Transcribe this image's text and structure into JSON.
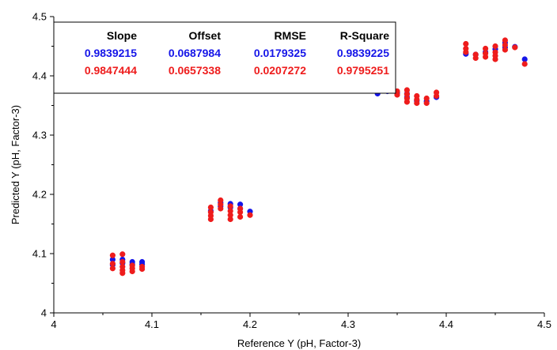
{
  "chart_data": {
    "type": "scatter",
    "title": "",
    "xlabel": "Reference Y (pH, Factor-3)",
    "ylabel": "Predicted Y (pH, Factor-3)",
    "xlim": [
      4,
      4.5
    ],
    "ylim": [
      4,
      4.5
    ],
    "x_ticks": [
      "4",
      "4.1",
      "4.2",
      "4.3",
      "4.4",
      "4.5"
    ],
    "y_ticks": [
      "4",
      "4.1",
      "4.2",
      "4.3",
      "4.4",
      "4.5"
    ],
    "grid": false,
    "legend": "none",
    "stats_table": {
      "headers": [
        "Slope",
        "Offset",
        "RMSE",
        "R-Square"
      ],
      "rows": [
        {
          "color": "#1515e8",
          "values": [
            "0.9839215",
            "0.0687984",
            "0.0179325",
            "0.9839225"
          ]
        },
        {
          "color": "#ee1c1c",
          "values": [
            "0.9847444",
            "0.0657338",
            "0.0207272",
            "0.9795251"
          ]
        }
      ]
    },
    "series": [
      {
        "color": "#1515e8",
        "points": [
          [
            4.06,
            4.081
          ],
          [
            4.06,
            4.09
          ],
          [
            4.07,
            4.084
          ],
          [
            4.07,
            4.09
          ],
          [
            4.08,
            4.082
          ],
          [
            4.08,
            4.086
          ],
          [
            4.09,
            4.086
          ],
          [
            4.09,
            4.082
          ],
          [
            4.16,
            4.172
          ],
          [
            4.17,
            4.18
          ],
          [
            4.17,
            4.186
          ],
          [
            4.18,
            4.178
          ],
          [
            4.18,
            4.184
          ],
          [
            4.19,
            4.183
          ],
          [
            4.19,
            4.176
          ],
          [
            4.2,
            4.171
          ],
          [
            4.33,
            4.37
          ],
          [
            4.34,
            4.374
          ],
          [
            4.35,
            4.371
          ],
          [
            4.36,
            4.364
          ],
          [
            4.36,
            4.37
          ],
          [
            4.37,
            4.358
          ],
          [
            4.38,
            4.357
          ],
          [
            4.39,
            4.364
          ],
          [
            4.42,
            4.437
          ],
          [
            4.43,
            4.436
          ],
          [
            4.44,
            4.44
          ],
          [
            4.45,
            4.445
          ],
          [
            4.46,
            4.456
          ],
          [
            4.46,
            4.448
          ],
          [
            4.47,
            4.449
          ],
          [
            4.48,
            4.428
          ]
        ]
      },
      {
        "color": "#ee1c1c",
        "points": [
          [
            4.06,
            4.075
          ],
          [
            4.06,
            4.083
          ],
          [
            4.06,
            4.097
          ],
          [
            4.07,
            4.067
          ],
          [
            4.07,
            4.072
          ],
          [
            4.07,
            4.078
          ],
          [
            4.07,
            4.086
          ],
          [
            4.07,
            4.099
          ],
          [
            4.08,
            4.07
          ],
          [
            4.08,
            4.075
          ],
          [
            4.08,
            4.08
          ],
          [
            4.09,
            4.074
          ],
          [
            4.09,
            4.078
          ],
          [
            4.16,
            4.158
          ],
          [
            4.16,
            4.164
          ],
          [
            4.16,
            4.17
          ],
          [
            4.16,
            4.178
          ],
          [
            4.17,
            4.176
          ],
          [
            4.17,
            4.183
          ],
          [
            4.17,
            4.19
          ],
          [
            4.18,
            4.158
          ],
          [
            4.18,
            4.165
          ],
          [
            4.18,
            4.172
          ],
          [
            4.18,
            4.18
          ],
          [
            4.19,
            4.162
          ],
          [
            4.19,
            4.17
          ],
          [
            4.19,
            4.176
          ],
          [
            4.2,
            4.165
          ],
          [
            4.33,
            4.376
          ],
          [
            4.34,
            4.378
          ],
          [
            4.35,
            4.368
          ],
          [
            4.35,
            4.374
          ],
          [
            4.36,
            4.356
          ],
          [
            4.36,
            4.362
          ],
          [
            4.36,
            4.369
          ],
          [
            4.36,
            4.376
          ],
          [
            4.37,
            4.354
          ],
          [
            4.37,
            4.36
          ],
          [
            4.37,
            4.366
          ],
          [
            4.38,
            4.354
          ],
          [
            4.38,
            4.362
          ],
          [
            4.39,
            4.366
          ],
          [
            4.39,
            4.372
          ],
          [
            4.42,
            4.44
          ],
          [
            4.42,
            4.446
          ],
          [
            4.42,
            4.454
          ],
          [
            4.43,
            4.43
          ],
          [
            4.43,
            4.436
          ],
          [
            4.44,
            4.432
          ],
          [
            4.44,
            4.438
          ],
          [
            4.44,
            4.446
          ],
          [
            4.45,
            4.428
          ],
          [
            4.45,
            4.434
          ],
          [
            4.45,
            4.44
          ],
          [
            4.45,
            4.45
          ],
          [
            4.46,
            4.444
          ],
          [
            4.46,
            4.452
          ],
          [
            4.46,
            4.46
          ],
          [
            4.47,
            4.448
          ],
          [
            4.48,
            4.42
          ]
        ]
      }
    ]
  }
}
